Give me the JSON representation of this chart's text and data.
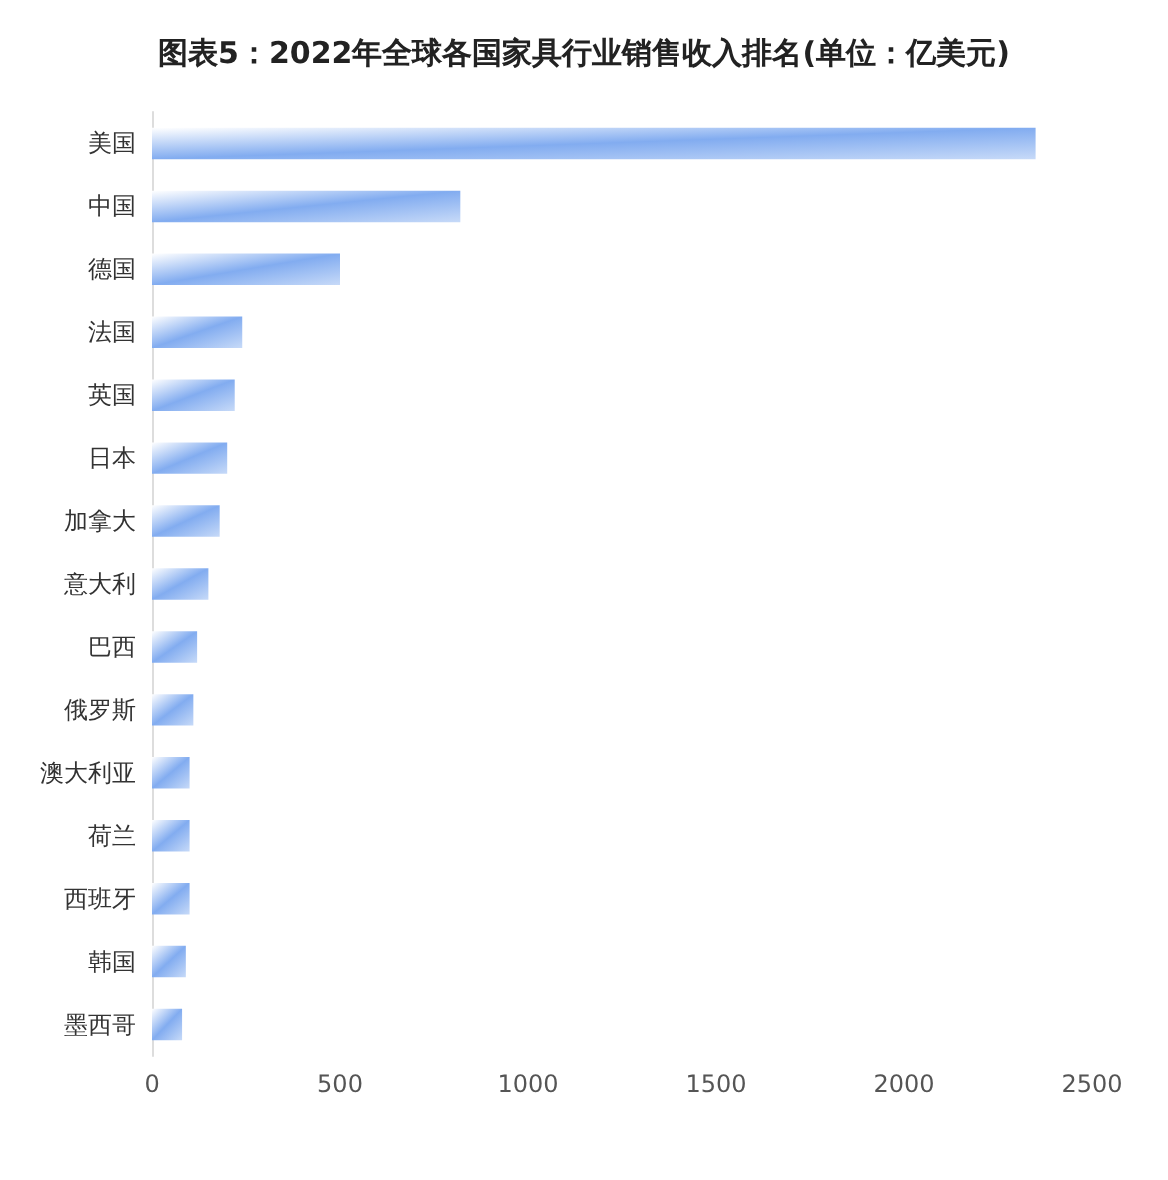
{
  "chart_data": {
    "type": "bar",
    "orientation": "horizontal",
    "title": "图表5：2022年全球各国家具行业销售收入排名(单位：亿美元)",
    "categories": [
      "美国",
      "中国",
      "德国",
      "法国",
      "英国",
      "日本",
      "加拿大",
      "意大利",
      "巴西",
      "俄罗斯",
      "澳大利亚",
      "荷兰",
      "西班牙",
      "韩国",
      "墨西哥"
    ],
    "values": [
      2350,
      820,
      500,
      240,
      220,
      200,
      180,
      150,
      120,
      110,
      100,
      100,
      100,
      90,
      80
    ],
    "color": "#82acf0",
    "xlim": [
      0,
      2500
    ],
    "xticks": [
      0,
      500,
      1000,
      1500,
      2000,
      2500
    ],
    "grid": false
  }
}
